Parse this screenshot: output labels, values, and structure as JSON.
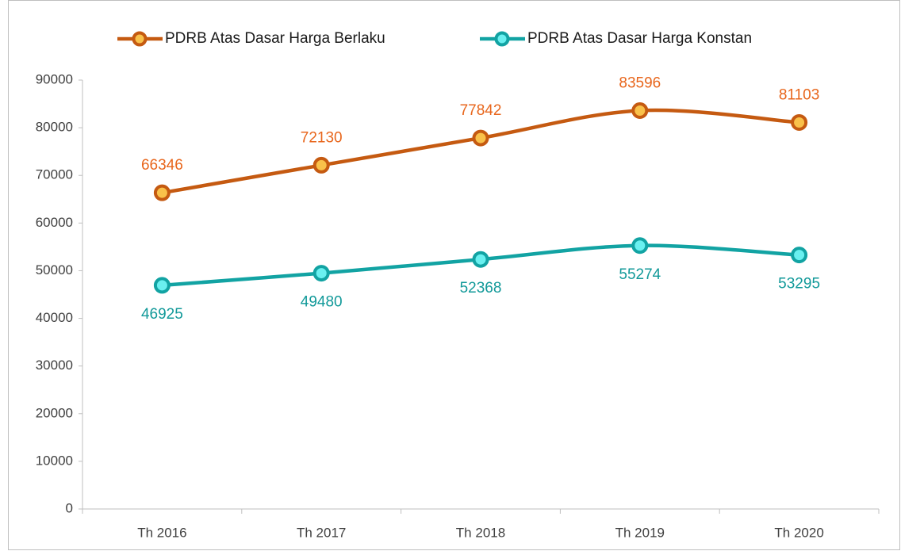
{
  "chart_data": {
    "type": "line",
    "smooth": true,
    "categories": [
      "Th 2016",
      "Th 2017",
      "Th 2018",
      "Th 2019",
      "Th 2020"
    ],
    "series": [
      {
        "name": "PDRB Atas Dasar Harga Berlaku",
        "color": "#c55a11",
        "marker_color": "#f9c14a",
        "label_color": "#e8661c",
        "label_position": "above",
        "values": [
          66346,
          72130,
          77842,
          83596,
          81103
        ]
      },
      {
        "name": "PDRB Atas Dasar Harga Konstan",
        "color": "#12a3a3",
        "marker_color": "#6af0f0",
        "label_color": "#119999",
        "label_position": "below",
        "values": [
          46925,
          49480,
          52368,
          55274,
          53295
        ]
      }
    ],
    "ylim": [
      0,
      90000
    ],
    "yticks": [
      0,
      10000,
      20000,
      30000,
      40000,
      50000,
      60000,
      70000,
      80000,
      90000
    ],
    "legend": "top",
    "grid": false
  }
}
